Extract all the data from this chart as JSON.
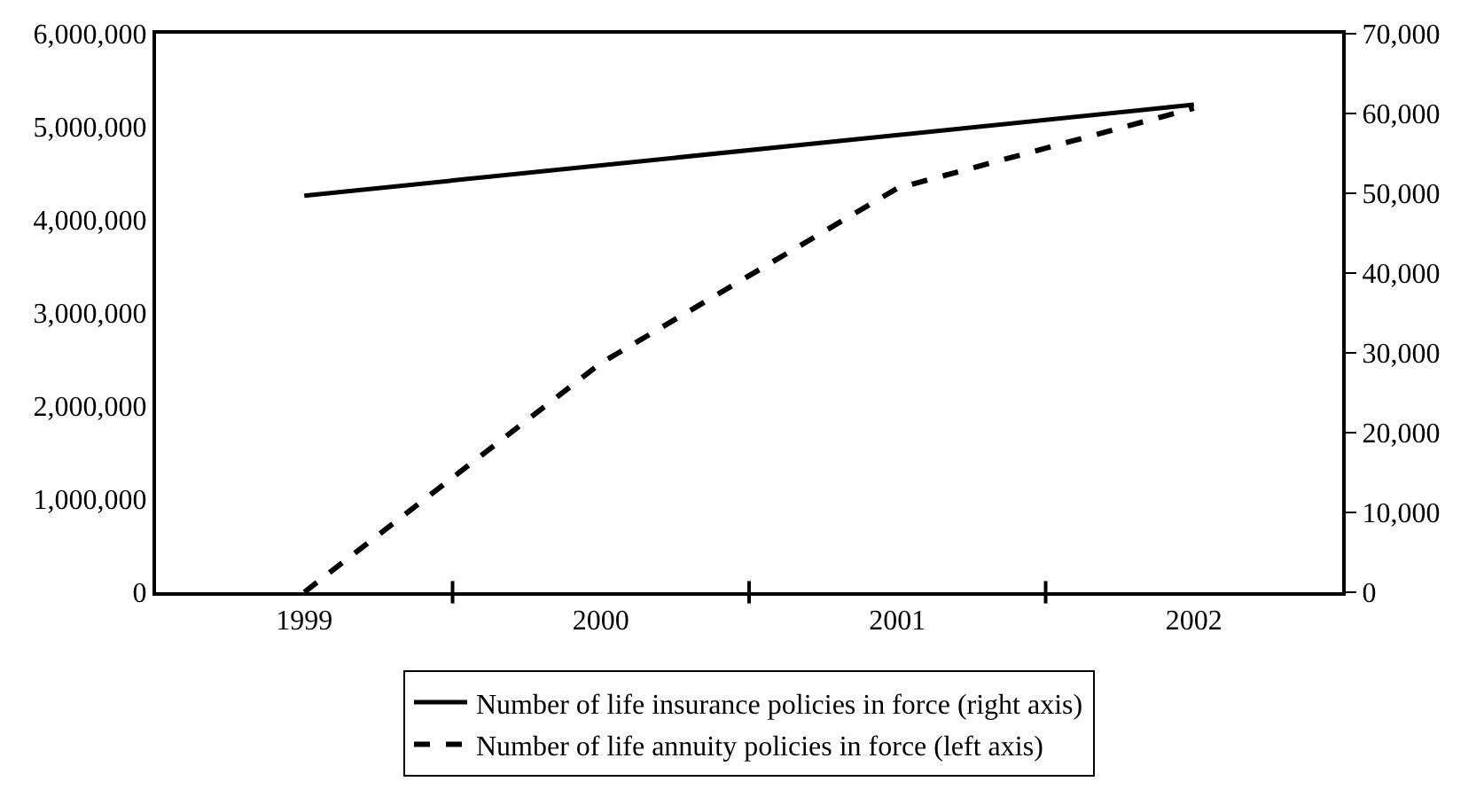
{
  "chart_data": {
    "type": "line",
    "categories": [
      "1999",
      "2000",
      "2001",
      "2002"
    ],
    "series": [
      {
        "name": "Number of life insurance policies in force (right axis)",
        "color": "#000000",
        "values": [
          49700,
          null,
          null,
          61100
        ],
        "axis": "y2",
        "line_style": "solid"
      },
      {
        "name": "Number of life annuity policies in force (left axis)",
        "color": "#000000",
        "values": [
          0,
          2460000,
          4340000,
          5200000
        ],
        "line_style": "dashed"
      }
    ],
    "ylim": [
      0,
      6000000
    ],
    "yticks": [
      {
        "value": 0,
        "label": "0"
      },
      {
        "value": 1000000,
        "label": "1,000,000"
      },
      {
        "value": 2000000,
        "label": "2,000,000"
      },
      {
        "value": 3000000,
        "label": "3,000,000"
      },
      {
        "value": 4000000,
        "label": "4,000,000"
      },
      {
        "value": 5000000,
        "label": "5,000,000"
      },
      {
        "value": 6000000,
        "label": "6,000,000"
      }
    ],
    "y2lim": [
      0,
      70000
    ],
    "y2ticks": [
      {
        "value": 0,
        "label": "0"
      },
      {
        "value": 10000,
        "label": "10,000"
      },
      {
        "value": 20000,
        "label": "20,000"
      },
      {
        "value": 30000,
        "label": "30,000"
      },
      {
        "value": 40000,
        "label": "40,000"
      },
      {
        "value": 50000,
        "label": "50,000"
      },
      {
        "value": 60000,
        "label": "60,000"
      },
      {
        "value": 70000,
        "label": "70,000"
      }
    ],
    "legend": "bottom",
    "marker": "none"
  }
}
